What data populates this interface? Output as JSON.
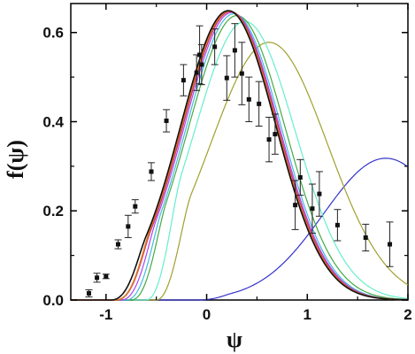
{
  "chart_data": {
    "type": "scatter",
    "xlabel": "ψ",
    "ylabel": "f(ψ)",
    "xlim": [
      -1.35,
      2.0
    ],
    "ylim": [
      0.0,
      0.665
    ],
    "x_ticks": [
      -1,
      0,
      1,
      2
    ],
    "x_tick_labels": [
      "-1",
      "0",
      "1",
      "2"
    ],
    "y_ticks": [
      0.0,
      0.2,
      0.4,
      0.6
    ],
    "y_tick_labels": [
      "0.0",
      "0.2",
      "0.4",
      "0.6"
    ],
    "grid": false,
    "legend": "none",
    "data_points": [
      {
        "x": -1.17,
        "y": 0.015,
        "err": 0.008
      },
      {
        "x": -1.09,
        "y": 0.05,
        "err": 0.01
      },
      {
        "x": -1.0,
        "y": 0.053,
        "err": 0.005
      },
      {
        "x": -0.88,
        "y": 0.125,
        "err": 0.01
      },
      {
        "x": -0.78,
        "y": 0.165,
        "err": 0.025
      },
      {
        "x": -0.71,
        "y": 0.21,
        "err": 0.015
      },
      {
        "x": -0.55,
        "y": 0.288,
        "err": 0.02
      },
      {
        "x": -0.4,
        "y": 0.402,
        "err": 0.025
      },
      {
        "x": -0.23,
        "y": 0.493,
        "err": 0.035
      },
      {
        "x": -0.1,
        "y": 0.51,
        "err": 0.04
      },
      {
        "x": -0.07,
        "y": 0.55,
        "err": 0.065
      },
      {
        "x": -0.05,
        "y": 0.528,
        "err": 0.045
      },
      {
        "x": 0.08,
        "y": 0.568,
        "err": 0.04
      },
      {
        "x": 0.2,
        "y": 0.498,
        "err": 0.05
      },
      {
        "x": 0.28,
        "y": 0.56,
        "err": 0.06
      },
      {
        "x": 0.35,
        "y": 0.508,
        "err": 0.07
      },
      {
        "x": 0.42,
        "y": 0.45,
        "err": 0.05
      },
      {
        "x": 0.52,
        "y": 0.44,
        "err": 0.05
      },
      {
        "x": 0.62,
        "y": 0.36,
        "err": 0.05
      },
      {
        "x": 0.68,
        "y": 0.372,
        "err": 0.045
      },
      {
        "x": 0.88,
        "y": 0.213,
        "err": 0.055
      },
      {
        "x": 0.93,
        "y": 0.275,
        "err": 0.04
      },
      {
        "x": 1.05,
        "y": 0.205,
        "err": 0.055
      },
      {
        "x": 1.12,
        "y": 0.238,
        "err": 0.05
      },
      {
        "x": 1.3,
        "y": 0.168,
        "err": 0.035
      },
      {
        "x": 1.58,
        "y": 0.14,
        "err": 0.03
      },
      {
        "x": 1.82,
        "y": 0.125,
        "err": 0.05
      }
    ],
    "curves": [
      {
        "color": "#3333cc",
        "mu": 1.78,
        "sigma": 0.62,
        "amp": 0.318,
        "cutoff": -0.1
      },
      {
        "color": "#a0a030",
        "mu": 0.62,
        "sigma": 0.58,
        "amp": 0.578,
        "cutoff": -0.5
      },
      {
        "color": "#66eecc",
        "mu": 0.38,
        "sigma": 0.5,
        "amp": 0.625,
        "cutoff": -0.6
      },
      {
        "color": "#44aa44",
        "mu": 0.3,
        "sigma": 0.48,
        "amp": 0.638,
        "cutoff": -0.75
      },
      {
        "color": "#44bbdd",
        "mu": 0.27,
        "sigma": 0.47,
        "amp": 0.642,
        "cutoff": -0.8
      },
      {
        "color": "#aa44ee",
        "mu": 0.25,
        "sigma": 0.47,
        "amp": 0.645,
        "cutoff": -0.85
      },
      {
        "color": "#cc3366",
        "mu": 0.235,
        "sigma": 0.47,
        "amp": 0.647,
        "cutoff": -0.9
      },
      {
        "color": "#dd7722",
        "mu": 0.225,
        "sigma": 0.47,
        "amp": 0.648,
        "cutoff": -0.9
      },
      {
        "color": "#111111",
        "mu": 0.215,
        "sigma": 0.47,
        "amp": 0.649,
        "cutoff": -0.95
      }
    ]
  }
}
